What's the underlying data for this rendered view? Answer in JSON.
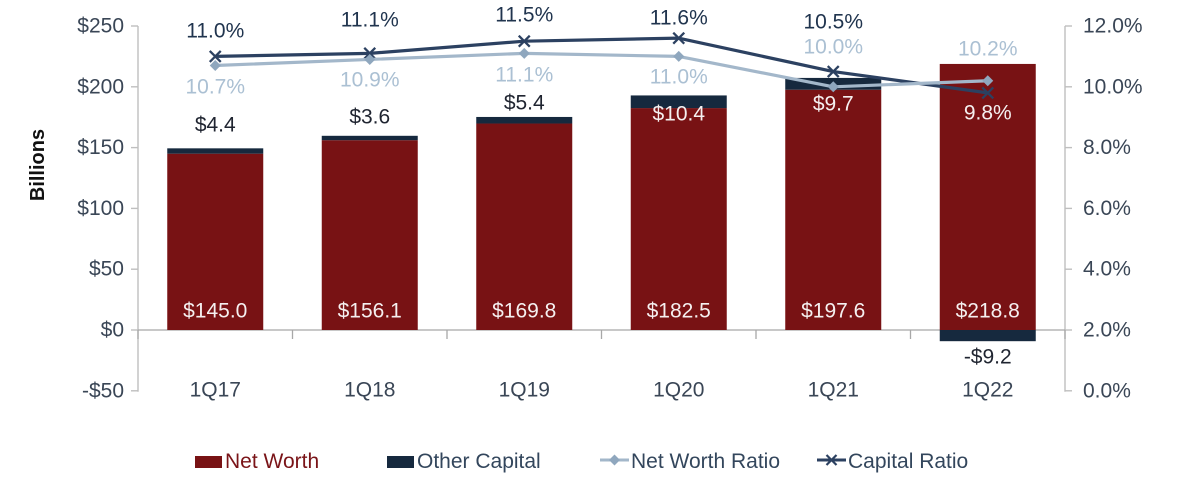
{
  "chart_data": {
    "type": "combo-bar-line",
    "categories": [
      "1Q17",
      "1Q18",
      "1Q19",
      "1Q20",
      "1Q21",
      "1Q22"
    ],
    "bar_series": [
      {
        "name": "Net Worth",
        "color": "#781214",
        "values": [
          145.0,
          156.1,
          169.8,
          182.5,
          197.6,
          218.8
        ],
        "labels": [
          "$145.0",
          "$156.1",
          "$169.8",
          "$182.5",
          "$197.6",
          "$218.8"
        ]
      },
      {
        "name": "Other Capital",
        "color": "#16293E",
        "values": [
          4.4,
          3.6,
          5.4,
          10.4,
          9.7,
          -9.2
        ],
        "labels": [
          "$4.4",
          "$3.6",
          "$5.4",
          "$10.4",
          "$9.7",
          "-$9.2"
        ],
        "label_styles": [
          "dark",
          "dark",
          "dark",
          "light",
          "light",
          "dark"
        ]
      }
    ],
    "line_series": [
      {
        "name": "Capital Ratio",
        "marker": "x",
        "color": "#2C4161",
        "values": [
          11.0,
          11.1,
          11.5,
          11.6,
          10.5,
          9.8
        ],
        "labels": [
          "11.0%",
          "11.1%",
          "11.5%",
          "11.6%",
          "10.5%",
          "9.8%"
        ],
        "label_styles": [
          "navy",
          "navy",
          "navy",
          "navy",
          "navy",
          "light"
        ]
      },
      {
        "name": "Net Worth Ratio",
        "marker": "diamond",
        "color": "#A3B7CA",
        "marker_color": "#8FA7BE",
        "values": [
          10.7,
          10.9,
          11.1,
          11.0,
          10.0,
          10.2
        ],
        "labels": [
          "10.7%",
          "10.9%",
          "11.1%",
          "11.0%",
          "10.0%",
          "10.2%"
        ],
        "label_color": "#ABC0D3"
      }
    ],
    "left_axis": {
      "title": "Billions",
      "min": -50,
      "max": 250,
      "tick_labels": [
        "$250",
        "$200",
        "$150",
        "$100",
        "$50",
        "$0",
        "-$50"
      ]
    },
    "right_axis": {
      "min": 0,
      "max": 12,
      "tick_labels": [
        "12.0%",
        "10.0%",
        "8.0%",
        "6.0%",
        "4.0%",
        "2.0%",
        "0.0%"
      ]
    },
    "legend": {
      "items": [
        "Net Worth",
        "Other Capital",
        "Net Worth Ratio",
        "Capital Ratio"
      ]
    },
    "colors": {
      "bar_red": "#781214",
      "bar_navy": "#16293E",
      "line_navy": "#2C4161",
      "line_light": "#A3B7CA",
      "label_light_blue": "#ABC0D3",
      "label_navy": "#20344E",
      "label_dark": "#1F2430",
      "label_white": "#F5F0F0",
      "axis_text": "#3A4656",
      "axis_line": "#BFBFBF",
      "baseline": "#A8A8A8"
    },
    "grid": "off",
    "legend_position": "bottom"
  }
}
